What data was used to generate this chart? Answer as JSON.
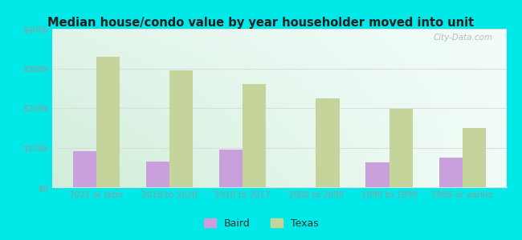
{
  "title": "Median house/condo value by year householder moved into unit",
  "categories": [
    "2021 or later",
    "2018 to 2020",
    "2010 to 2017",
    "2000 to 2009",
    "1990 to 1999",
    "1989 or earlier"
  ],
  "baird_values": [
    90000,
    65000,
    95000,
    0,
    62000,
    75000
  ],
  "texas_values": [
    330000,
    295000,
    260000,
    225000,
    198000,
    150000
  ],
  "baird_color": "#c9a0dc",
  "texas_color": "#c5d49a",
  "background_grad_left": "#d0ecd0",
  "background_grad_right": "#f0faf8",
  "outer_background": "#00e8e8",
  "ylim": [
    0,
    400000
  ],
  "yticks": [
    0,
    100000,
    200000,
    300000,
    400000
  ],
  "ytick_labels": [
    "$0",
    "$100k",
    "$200k",
    "$300k",
    "$400k"
  ],
  "bar_width": 0.32,
  "legend_labels": [
    "Baird",
    "Texas"
  ],
  "watermark": "City-Data.com",
  "tick_color": "#999999",
  "title_color": "#222222",
  "grid_color": "#dddddd"
}
